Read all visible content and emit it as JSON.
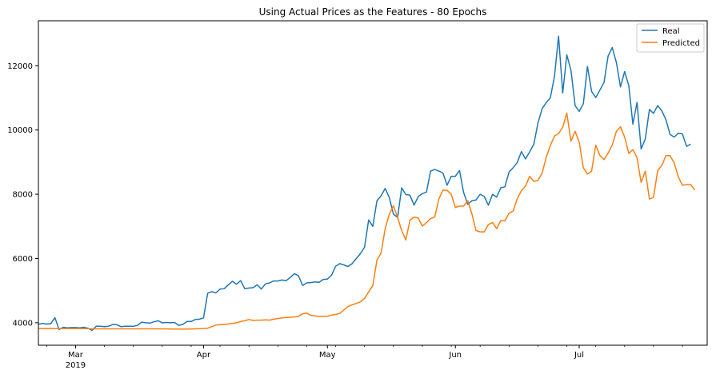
{
  "chart_data": {
    "type": "line",
    "title": "Using Actual Prices as the Features - 80 Epochs",
    "xlabel": "",
    "ylabel": "",
    "x_start": "2019-02-21",
    "x_end": "2019-08-02",
    "xlim_days": [
      0,
      162
    ],
    "ylim": [
      3300,
      13400
    ],
    "y_ticks": [
      4000,
      6000,
      8000,
      10000,
      12000
    ],
    "y_tick_labels": [
      "4000",
      "6000",
      "8000",
      "10000",
      "12000"
    ],
    "x_ticks": [
      {
        "day": 9,
        "label": "Mar",
        "sublabel": "2019"
      },
      {
        "day": 40,
        "label": "Apr",
        "sublabel": ""
      },
      {
        "day": 70,
        "label": "May",
        "sublabel": ""
      },
      {
        "day": 101,
        "label": "Jun",
        "sublabel": ""
      },
      {
        "day": 131,
        "label": "Jul",
        "sublabel": ""
      }
    ],
    "legend_position": "top-right",
    "series": [
      {
        "name": "Real",
        "color": "#1f77b4",
        "points": [
          [
            0,
            3950
          ],
          [
            1,
            3980
          ],
          [
            2,
            3960
          ],
          [
            3,
            3970
          ],
          [
            4,
            4160
          ],
          [
            5,
            3790
          ],
          [
            6,
            3860
          ],
          [
            7,
            3840
          ],
          [
            8,
            3850
          ],
          [
            9,
            3850
          ],
          [
            10,
            3840
          ],
          [
            11,
            3860
          ],
          [
            12,
            3830
          ],
          [
            13,
            3760
          ],
          [
            14,
            3890
          ],
          [
            15,
            3890
          ],
          [
            16,
            3880
          ],
          [
            17,
            3890
          ],
          [
            18,
            3950
          ],
          [
            19,
            3940
          ],
          [
            20,
            3880
          ],
          [
            21,
            3890
          ],
          [
            22,
            3890
          ],
          [
            23,
            3890
          ],
          [
            24,
            3920
          ],
          [
            25,
            4020
          ],
          [
            26,
            4000
          ],
          [
            27,
            3990
          ],
          [
            28,
            4030
          ],
          [
            29,
            4060
          ],
          [
            30,
            4000
          ],
          [
            31,
            4010
          ],
          [
            32,
            4000
          ],
          [
            33,
            4010
          ],
          [
            34,
            3920
          ],
          [
            35,
            3950
          ],
          [
            36,
            4040
          ],
          [
            37,
            4040
          ],
          [
            38,
            4100
          ],
          [
            39,
            4110
          ],
          [
            40,
            4150
          ],
          [
            41,
            4920
          ],
          [
            42,
            4970
          ],
          [
            43,
            4930
          ],
          [
            44,
            5050
          ],
          [
            45,
            5060
          ],
          [
            46,
            5180
          ],
          [
            47,
            5290
          ],
          [
            48,
            5200
          ],
          [
            49,
            5310
          ],
          [
            50,
            5060
          ],
          [
            51,
            5080
          ],
          [
            52,
            5090
          ],
          [
            53,
            5180
          ],
          [
            54,
            5050
          ],
          [
            55,
            5210
          ],
          [
            56,
            5240
          ],
          [
            57,
            5300
          ],
          [
            58,
            5300
          ],
          [
            59,
            5330
          ],
          [
            60,
            5310
          ],
          [
            61,
            5410
          ],
          [
            62,
            5530
          ],
          [
            63,
            5460
          ],
          [
            64,
            5160
          ],
          [
            65,
            5240
          ],
          [
            66,
            5250
          ],
          [
            67,
            5270
          ],
          [
            68,
            5260
          ],
          [
            69,
            5350
          ],
          [
            70,
            5360
          ],
          [
            71,
            5480
          ],
          [
            72,
            5760
          ],
          [
            73,
            5840
          ],
          [
            74,
            5800
          ],
          [
            75,
            5750
          ],
          [
            76,
            5840
          ],
          [
            77,
            6000
          ],
          [
            78,
            6150
          ],
          [
            79,
            6350
          ],
          [
            80,
            7200
          ],
          [
            81,
            7000
          ],
          [
            82,
            7800
          ],
          [
            83,
            7950
          ],
          [
            84,
            8180
          ],
          [
            85,
            7900
          ],
          [
            86,
            7380
          ],
          [
            87,
            7280
          ],
          [
            88,
            8200
          ],
          [
            89,
            7990
          ],
          [
            90,
            7970
          ],
          [
            91,
            7660
          ],
          [
            92,
            7930
          ],
          [
            93,
            8020
          ],
          [
            94,
            8070
          ],
          [
            95,
            8720
          ],
          [
            96,
            8770
          ],
          [
            97,
            8720
          ],
          [
            98,
            8660
          ],
          [
            99,
            8280
          ],
          [
            100,
            8560
          ],
          [
            101,
            8560
          ],
          [
            102,
            8740
          ],
          [
            103,
            8060
          ],
          [
            104,
            7680
          ],
          [
            105,
            7800
          ],
          [
            106,
            7820
          ],
          [
            107,
            8000
          ],
          [
            108,
            7930
          ],
          [
            109,
            7660
          ],
          [
            110,
            8000
          ],
          [
            111,
            7910
          ],
          [
            112,
            8200
          ],
          [
            113,
            8230
          ],
          [
            114,
            8690
          ],
          [
            115,
            8830
          ],
          [
            116,
            8990
          ],
          [
            117,
            9330
          ],
          [
            118,
            9100
          ],
          [
            119,
            9320
          ],
          [
            120,
            9560
          ],
          [
            121,
            10210
          ],
          [
            122,
            10660
          ],
          [
            123,
            10850
          ],
          [
            124,
            11000
          ],
          [
            125,
            11670
          ],
          [
            126,
            12920
          ],
          [
            127,
            11150
          ],
          [
            128,
            12340
          ],
          [
            129,
            11860
          ],
          [
            130,
            10760
          ],
          [
            131,
            10580
          ],
          [
            132,
            10820
          ],
          [
            133,
            11980
          ],
          [
            134,
            11200
          ],
          [
            135,
            11010
          ],
          [
            136,
            11240
          ],
          [
            137,
            11480
          ],
          [
            138,
            12300
          ],
          [
            139,
            12570
          ],
          [
            140,
            12100
          ],
          [
            141,
            11340
          ],
          [
            142,
            11820
          ],
          [
            143,
            11380
          ],
          [
            144,
            10180
          ],
          [
            145,
            10860
          ],
          [
            146,
            9410
          ],
          [
            147,
            9720
          ],
          [
            148,
            10640
          ],
          [
            149,
            10520
          ],
          [
            150,
            10760
          ],
          [
            151,
            10600
          ],
          [
            152,
            10320
          ],
          [
            153,
            9860
          ],
          [
            154,
            9780
          ],
          [
            155,
            9900
          ],
          [
            156,
            9880
          ],
          [
            157,
            9490
          ],
          [
            158,
            9560
          ]
        ]
      },
      {
        "name": "Predicted",
        "color": "#ff7f0e",
        "points": [
          [
            0,
            3820
          ],
          [
            5,
            3820
          ],
          [
            10,
            3820
          ],
          [
            15,
            3810
          ],
          [
            20,
            3810
          ],
          [
            25,
            3810
          ],
          [
            30,
            3810
          ],
          [
            35,
            3800
          ],
          [
            38,
            3810
          ],
          [
            40,
            3820
          ],
          [
            41,
            3830
          ],
          [
            42,
            3880
          ],
          [
            43,
            3930
          ],
          [
            44,
            3940
          ],
          [
            45,
            3950
          ],
          [
            46,
            3960
          ],
          [
            47,
            3980
          ],
          [
            48,
            4000
          ],
          [
            49,
            4040
          ],
          [
            50,
            4060
          ],
          [
            51,
            4100
          ],
          [
            52,
            4070
          ],
          [
            53,
            4080
          ],
          [
            54,
            4080
          ],
          [
            55,
            4090
          ],
          [
            56,
            4080
          ],
          [
            57,
            4110
          ],
          [
            58,
            4130
          ],
          [
            59,
            4150
          ],
          [
            60,
            4160
          ],
          [
            61,
            4170
          ],
          [
            62,
            4180
          ],
          [
            63,
            4200
          ],
          [
            64,
            4280
          ],
          [
            65,
            4300
          ],
          [
            66,
            4230
          ],
          [
            67,
            4210
          ],
          [
            68,
            4200
          ],
          [
            69,
            4200
          ],
          [
            70,
            4200
          ],
          [
            71,
            4240
          ],
          [
            72,
            4260
          ],
          [
            73,
            4290
          ],
          [
            74,
            4400
          ],
          [
            75,
            4510
          ],
          [
            76,
            4560
          ],
          [
            77,
            4600
          ],
          [
            78,
            4650
          ],
          [
            79,
            4760
          ],
          [
            80,
            4960
          ],
          [
            81,
            5160
          ],
          [
            82,
            5950
          ],
          [
            83,
            6170
          ],
          [
            84,
            6930
          ],
          [
            85,
            7380
          ],
          [
            86,
            7640
          ],
          [
            87,
            7280
          ],
          [
            88,
            6870
          ],
          [
            89,
            6580
          ],
          [
            90,
            7190
          ],
          [
            91,
            7290
          ],
          [
            92,
            7260
          ],
          [
            93,
            7010
          ],
          [
            94,
            7120
          ],
          [
            95,
            7240
          ],
          [
            96,
            7290
          ],
          [
            97,
            7850
          ],
          [
            98,
            8130
          ],
          [
            99,
            8120
          ],
          [
            100,
            8000
          ],
          [
            101,
            7590
          ],
          [
            102,
            7630
          ],
          [
            103,
            7630
          ],
          [
            104,
            7800
          ],
          [
            105,
            7390
          ],
          [
            106,
            6870
          ],
          [
            107,
            6830
          ],
          [
            108,
            6830
          ],
          [
            109,
            7060
          ],
          [
            110,
            7120
          ],
          [
            111,
            6930
          ],
          [
            112,
            7180
          ],
          [
            113,
            7170
          ],
          [
            114,
            7410
          ],
          [
            115,
            7480
          ],
          [
            116,
            7870
          ],
          [
            117,
            8110
          ],
          [
            118,
            8250
          ],
          [
            119,
            8560
          ],
          [
            120,
            8400
          ],
          [
            121,
            8430
          ],
          [
            122,
            8650
          ],
          [
            123,
            9140
          ],
          [
            124,
            9520
          ],
          [
            125,
            9810
          ],
          [
            126,
            9890
          ],
          [
            127,
            10090
          ],
          [
            128,
            10530
          ],
          [
            129,
            9650
          ],
          [
            130,
            9960
          ],
          [
            131,
            9620
          ],
          [
            132,
            8820
          ],
          [
            133,
            8630
          ],
          [
            134,
            8720
          ],
          [
            135,
            9530
          ],
          [
            136,
            9210
          ],
          [
            137,
            9080
          ],
          [
            138,
            9280
          ],
          [
            139,
            9530
          ],
          [
            140,
            9960
          ],
          [
            141,
            10100
          ],
          [
            142,
            9780
          ],
          [
            143,
            9270
          ],
          [
            144,
            9390
          ],
          [
            145,
            9140
          ],
          [
            146,
            8370
          ],
          [
            147,
            8720
          ],
          [
            148,
            7850
          ],
          [
            149,
            7900
          ],
          [
            150,
            8740
          ],
          [
            151,
            8890
          ],
          [
            152,
            9200
          ],
          [
            153,
            9200
          ],
          [
            154,
            8980
          ],
          [
            155,
            8540
          ],
          [
            156,
            8280
          ],
          [
            157,
            8300
          ],
          [
            158,
            8300
          ],
          [
            159,
            8130
          ]
        ]
      }
    ]
  }
}
